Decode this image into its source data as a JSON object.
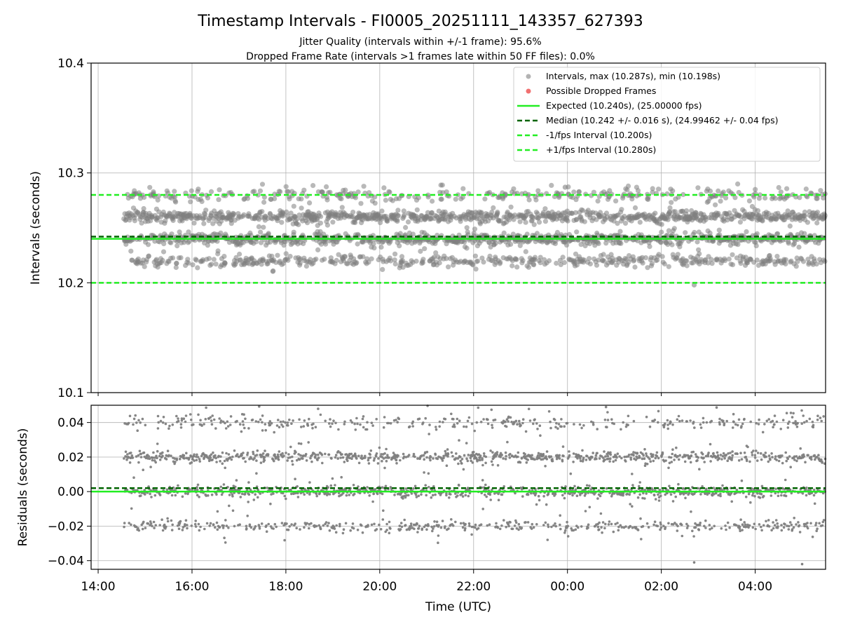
{
  "title": "Timestamp Intervals - FI0005_20251111_143357_627393",
  "subtitle_jitter": "Jitter Quality (intervals within +/-1 frame): 95.6%",
  "subtitle_dropped": "Dropped Frame Rate (intervals >1 frames late within 50 FF files): 0.0%",
  "colors": {
    "points": "#808080",
    "dropped": "#f06060",
    "expected": "#22ee22",
    "median": "#006400",
    "interval": "#22ee22"
  },
  "chart_data": [
    {
      "type": "scatter",
      "name": "intervals",
      "ylabel": "Intervals (seconds)",
      "xlabel": "",
      "ylim": [
        10.1,
        10.4
      ],
      "xlim_hours": [
        13.85,
        29.5
      ],
      "yticks": [
        10.1,
        10.2,
        10.3,
        10.4
      ],
      "ytick_labels": [
        "10.1",
        "10.2",
        "10.3",
        "10.4"
      ],
      "grid": true,
      "legend_position": "top-right",
      "x_start_hours": 14.55,
      "x_end_hours": 29.5,
      "point_bands": [
        {
          "center": 10.28,
          "spread": 0.003,
          "weight": 0.12
        },
        {
          "center": 10.26,
          "spread": 0.0025,
          "weight": 0.35
        },
        {
          "center": 10.24,
          "spread": 0.0025,
          "weight": 0.33
        },
        {
          "center": 10.22,
          "spread": 0.0025,
          "weight": 0.2
        }
      ],
      "max_interval": 10.287,
      "min_interval": 10.198,
      "series": [
        {
          "name": "Expected",
          "value": 10.24,
          "style": "solid"
        },
        {
          "name": "Median",
          "value": 10.242,
          "style": "dashed"
        },
        {
          "name": "-1/fps Interval",
          "value": 10.2,
          "style": "dashed"
        },
        {
          "name": "+1/fps Interval",
          "value": 10.28,
          "style": "dashed"
        }
      ],
      "legend": [
        {
          "label": "Intervals, max (10.287s), min (10.198s)",
          "kind": "point-gray"
        },
        {
          "label": "Possible Dropped Frames",
          "kind": "point-red"
        },
        {
          "label": "Expected (10.240s), (25.00000 fps)",
          "kind": "line-solid-green"
        },
        {
          "label": "Median (10.242 +/- 0.016 s), (24.99462 +/- 0.04 fps)",
          "kind": "line-dashed-darkgreen"
        },
        {
          "label": "-1/fps Interval (10.200s)",
          "kind": "line-dashed-green"
        },
        {
          "label": "+1/fps Interval (10.280s)",
          "kind": "line-dashed-green"
        }
      ]
    },
    {
      "type": "scatter",
      "name": "residuals",
      "ylabel": "Residuals (seconds)",
      "xlabel": "Time (UTC)",
      "ylim": [
        -0.045,
        0.05
      ],
      "xlim_hours": [
        13.85,
        29.5
      ],
      "yticks": [
        -0.04,
        -0.02,
        0.0,
        0.02,
        0.04
      ],
      "ytick_labels": [
        "−0.04",
        "−0.02",
        "0.00",
        "0.02",
        "0.04"
      ],
      "xticks_hours": [
        14,
        16,
        18,
        20,
        22,
        24,
        26,
        28
      ],
      "xtick_labels": [
        "14:00",
        "16:00",
        "18:00",
        "20:00",
        "22:00",
        "00:00",
        "02:00",
        "04:00"
      ],
      "grid": true,
      "point_bands": [
        {
          "center": 0.04,
          "spread": 0.002,
          "weight": 0.14
        },
        {
          "center": 0.02,
          "spread": 0.0015,
          "weight": 0.33
        },
        {
          "center": 0.0,
          "spread": 0.0015,
          "weight": 0.33
        },
        {
          "center": -0.02,
          "spread": 0.0015,
          "weight": 0.2
        }
      ],
      "series": [
        {
          "name": "Zero",
          "value": 0.0,
          "style": "solid"
        },
        {
          "name": "Median offset",
          "value": 0.002,
          "style": "dashed"
        }
      ]
    }
  ]
}
